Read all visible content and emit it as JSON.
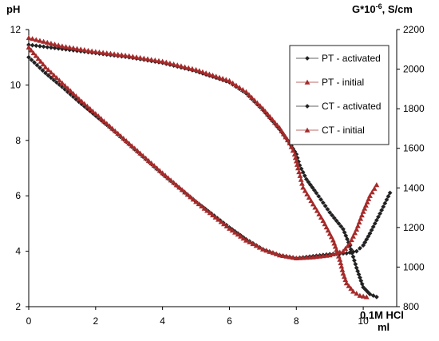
{
  "chart_data": {
    "type": "line",
    "y1label": "pH",
    "y2label_parts": {
      "base": "G*10",
      "exp": "-6",
      "unit": ", S/cm"
    },
    "xlabel_lines": [
      "0,1M HCl",
      "ml"
    ],
    "xlim": [
      0,
      11
    ],
    "ylim_left": [
      2,
      12
    ],
    "ylim_right": [
      800,
      2200
    ],
    "xticks": [
      0,
      2,
      4,
      6,
      8,
      10
    ],
    "yticks_left": [
      2,
      4,
      6,
      8,
      10,
      12
    ],
    "yticks_right": [
      800,
      1000,
      1200,
      1400,
      1600,
      1800,
      2000,
      2200
    ],
    "grid": false,
    "legend_position": "top-right",
    "series": [
      {
        "name": "PT - activated",
        "axis": "pH",
        "color": "#222222",
        "marker": "diamond",
        "x": [
          0,
          1,
          2,
          3,
          4,
          5,
          6,
          6.5,
          7,
          7.5,
          7.8,
          8,
          8.1,
          8.3,
          8.6,
          9,
          9.4,
          9.6,
          9.8,
          10,
          10.2,
          10.4
        ],
        "y": [
          11.45,
          11.3,
          11.15,
          11.0,
          10.8,
          10.5,
          10.1,
          9.7,
          9.1,
          8.4,
          7.9,
          7.5,
          7.1,
          6.6,
          6.1,
          5.4,
          4.8,
          4.2,
          3.4,
          2.7,
          2.45,
          2.35
        ]
      },
      {
        "name": "PT - initial",
        "axis": "pH",
        "color": "#a52a2a",
        "marker": "triangle",
        "x": [
          0,
          1,
          2,
          3,
          4,
          5,
          6,
          6.5,
          7,
          7.5,
          7.8,
          7.95,
          8.05,
          8.2,
          8.5,
          8.8,
          9.1,
          9.3,
          9.4,
          9.5,
          9.7,
          9.9,
          10.1
        ],
        "y": [
          11.7,
          11.4,
          11.2,
          11.05,
          10.85,
          10.55,
          10.15,
          9.75,
          9.15,
          8.45,
          7.9,
          7.5,
          7.0,
          6.3,
          5.7,
          5.1,
          4.4,
          3.7,
          3.2,
          2.85,
          2.55,
          2.4,
          2.35
        ]
      },
      {
        "name": "CT - activated",
        "axis": "G",
        "color": "#222222",
        "marker": "diamond",
        "x": [
          0,
          0.5,
          1,
          1.5,
          2,
          2.5,
          3,
          4,
          5,
          6,
          6.5,
          7,
          7.5,
          8,
          8.5,
          9,
          9.5,
          9.8,
          10,
          10.2,
          10.5,
          10.8
        ],
        "y": [
          2060,
          1980,
          1910,
          1835,
          1765,
          1695,
          1620,
          1470,
          1330,
          1200,
          1140,
          1090,
          1060,
          1045,
          1055,
          1065,
          1070,
          1080,
          1110,
          1170,
          1270,
          1375
        ]
      },
      {
        "name": "CT - initial",
        "axis": "G",
        "color": "#a52a2a",
        "marker": "triangle",
        "x": [
          0,
          0.5,
          1,
          1.5,
          2,
          2.5,
          3,
          4,
          5,
          6,
          6.5,
          7,
          7.5,
          8,
          8.5,
          9,
          9.4,
          9.6,
          9.8,
          10,
          10.2,
          10.4
        ],
        "y": [
          2110,
          2010,
          1930,
          1850,
          1775,
          1700,
          1625,
          1475,
          1330,
          1195,
          1135,
          1090,
          1060,
          1045,
          1050,
          1060,
          1080,
          1120,
          1190,
          1280,
          1360,
          1415
        ]
      }
    ]
  }
}
